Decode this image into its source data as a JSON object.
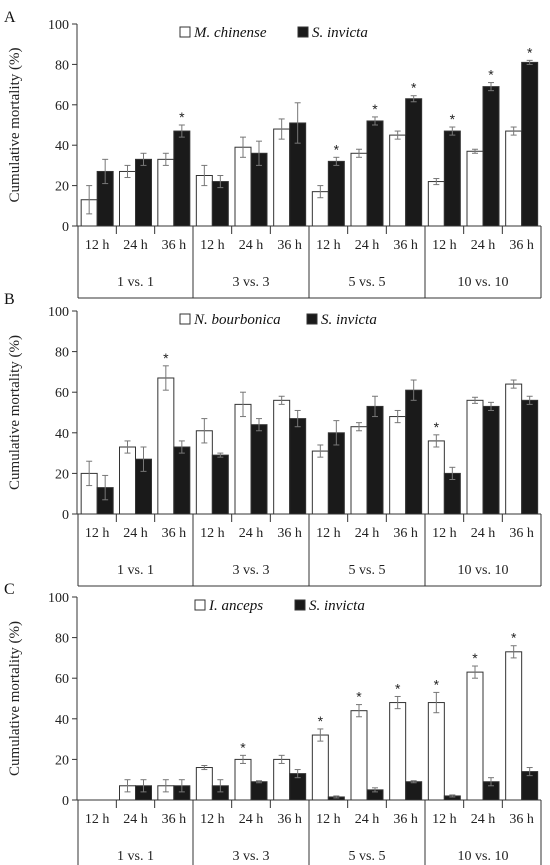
{
  "chart_data": [
    {
      "type": "bar",
      "panel": "A",
      "ylabel": "Cumulative mortality (%)",
      "ylim": [
        0,
        100
      ],
      "yticks": [
        0,
        20,
        40,
        60,
        80,
        100
      ],
      "groups": [
        "1 vs. 1",
        "3 vs. 3",
        "5 vs. 5",
        "10 vs. 10"
      ],
      "categories": [
        "12 h",
        "24 h",
        "36 h",
        "12 h",
        "24 h",
        "36 h",
        "12 h",
        "24 h",
        "36 h",
        "12 h",
        "24 h",
        "36 h"
      ],
      "legend_position": "top-center",
      "series": [
        {
          "name": "M. chinense",
          "color": "#ffffff",
          "values": [
            13,
            27,
            33,
            25,
            39,
            48,
            17,
            36,
            45,
            22,
            37,
            47
          ],
          "errors": [
            7,
            3,
            3,
            5,
            5,
            5,
            3,
            2,
            2,
            1.5,
            1,
            2
          ]
        },
        {
          "name": "S. invicta",
          "color": "#1a1a1a",
          "values": [
            27,
            33,
            47,
            22,
            36,
            51,
            32,
            52,
            63,
            47,
            69,
            81
          ],
          "errors": [
            6,
            3,
            3,
            3,
            6,
            10,
            2,
            2,
            1.5,
            2,
            2,
            1
          ]
        }
      ],
      "significant": [
        {
          "category_index": 2,
          "series": "S. invicta"
        },
        {
          "category_index": 6,
          "series": "S. invicta"
        },
        {
          "category_index": 7,
          "series": "S. invicta"
        },
        {
          "category_index": 8,
          "series": "S. invicta"
        },
        {
          "category_index": 9,
          "series": "S. invicta"
        },
        {
          "category_index": 10,
          "series": "S. invicta"
        },
        {
          "category_index": 11,
          "series": "S. invicta"
        }
      ]
    },
    {
      "type": "bar",
      "panel": "B",
      "ylabel": "Cumulative mortality (%)",
      "ylim": [
        0,
        100
      ],
      "yticks": [
        0,
        20,
        40,
        60,
        80,
        100
      ],
      "groups": [
        "1 vs. 1",
        "3 vs. 3",
        "5 vs. 5",
        "10 vs. 10"
      ],
      "categories": [
        "12 h",
        "24 h",
        "36 h",
        "12 h",
        "24 h",
        "36 h",
        "12 h",
        "24 h",
        "36 h",
        "12 h",
        "24 h",
        "36 h"
      ],
      "legend_position": "top-center",
      "series": [
        {
          "name": "N. bourbonica",
          "color": "#ffffff",
          "values": [
            20,
            33,
            67,
            41,
            54,
            56,
            31,
            43,
            48,
            36,
            56,
            64
          ],
          "errors": [
            6,
            3,
            6,
            6,
            6,
            2,
            3,
            2,
            3,
            3,
            1.5,
            2
          ]
        },
        {
          "name": "S. invicta",
          "color": "#1a1a1a",
          "values": [
            13,
            27,
            33,
            29,
            44,
            47,
            40,
            53,
            61,
            20,
            53,
            56
          ],
          "errors": [
            6,
            6,
            3,
            1,
            3,
            4,
            6,
            5,
            5,
            3,
            2,
            2
          ]
        }
      ],
      "significant": [
        {
          "category_index": 2,
          "series": "N. bourbonica"
        },
        {
          "category_index": 9,
          "series": "N. bourbonica"
        }
      ]
    },
    {
      "type": "bar",
      "panel": "C",
      "ylabel": "Cumulative mortality (%)",
      "ylim": [
        0,
        100
      ],
      "yticks": [
        0,
        20,
        40,
        60,
        80,
        100
      ],
      "groups": [
        "1 vs. 1",
        "3 vs. 3",
        "5 vs. 5",
        "10 vs. 10"
      ],
      "categories": [
        "12 h",
        "24 h",
        "36 h",
        "12 h",
        "24 h",
        "36 h",
        "12 h",
        "24 h",
        "36 h",
        "12 h",
        "24 h",
        "36 h"
      ],
      "legend_position": "top-center",
      "series": [
        {
          "name": "I. anceps",
          "color": "#ffffff",
          "values": [
            0,
            7,
            7,
            16,
            20,
            20,
            32,
            44,
            48,
            48,
            63,
            73
          ],
          "errors": [
            0,
            3,
            3,
            1,
            2,
            2,
            3,
            3,
            3,
            5,
            3,
            3
          ]
        },
        {
          "name": "S. invicta",
          "color": "#1a1a1a",
          "values": [
            0,
            7,
            7,
            7,
            9,
            13,
            1.5,
            5,
            9,
            2,
            9,
            14
          ],
          "errors": [
            0,
            3,
            3,
            3,
            0.5,
            2,
            0.5,
            1,
            0.5,
            0.5,
            2,
            2
          ]
        }
      ],
      "significant": [
        {
          "category_index": 4,
          "series": "I. anceps"
        },
        {
          "category_index": 6,
          "series": "I. anceps"
        },
        {
          "category_index": 7,
          "series": "I. anceps"
        },
        {
          "category_index": 8,
          "series": "I. anceps"
        },
        {
          "category_index": 9,
          "series": "I. anceps"
        },
        {
          "category_index": 10,
          "series": "I. anceps"
        },
        {
          "category_index": 11,
          "series": "I. anceps"
        }
      ]
    }
  ],
  "significance_symbol": "*"
}
